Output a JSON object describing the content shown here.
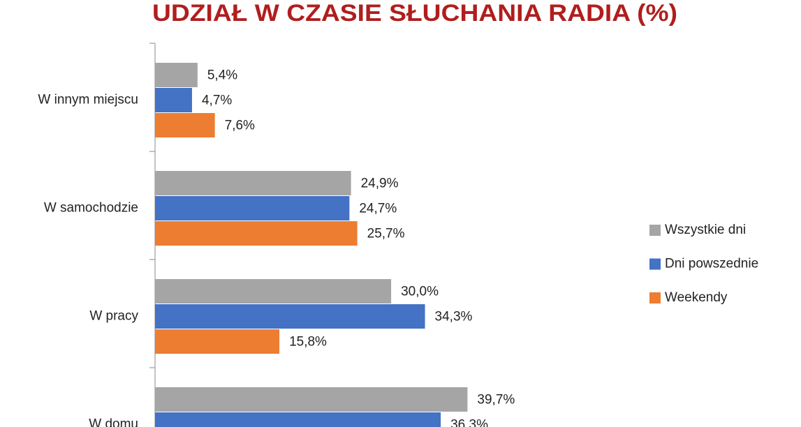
{
  "chart_data": {
    "type": "bar",
    "orientation": "horizontal",
    "title": "UDZIAŁ W CZASIE SŁUCHANIA RADIA (%)",
    "categories": [
      "W innym miejscu",
      "W samochodzie",
      "W pracy",
      "W domu"
    ],
    "series": [
      {
        "name": "Wszystkie dni",
        "color": "#a5a5a5",
        "values": [
          5.4,
          24.9,
          30.0,
          39.7
        ],
        "value_labels": [
          "5,4%",
          "24,9%",
          "30,0%",
          "39,7%"
        ]
      },
      {
        "name": "Dni powszednie",
        "color": "#4472c4",
        "values": [
          4.7,
          24.7,
          34.3,
          36.3
        ],
        "value_labels": [
          "4,7%",
          "24,7%",
          "34,3%",
          "36,3%"
        ]
      },
      {
        "name": "Weekendy",
        "color": "#ed7d31",
        "values": [
          7.6,
          25.7,
          15.8,
          null
        ],
        "value_labels": [
          "7,6%",
          "25,7%",
          "15,8%",
          null
        ]
      }
    ],
    "legend": "right"
  }
}
